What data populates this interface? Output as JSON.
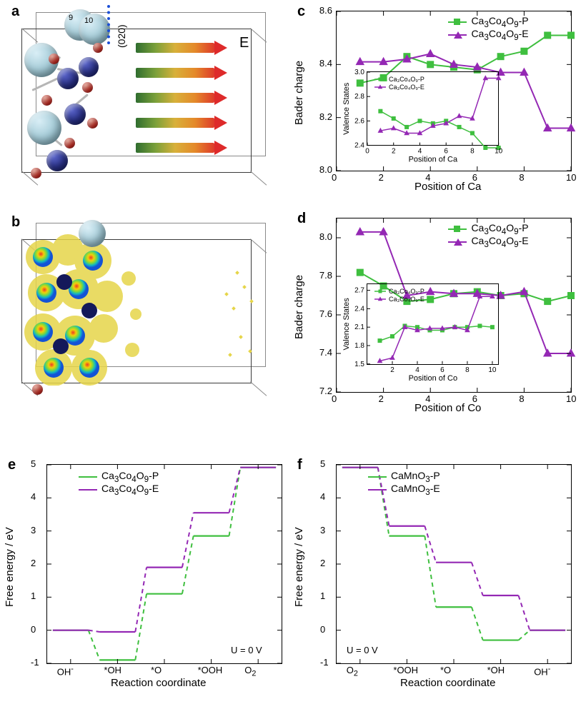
{
  "panelLabels": {
    "a": "a",
    "b": "b",
    "c": "c",
    "d": "d",
    "e": "e",
    "f": "f"
  },
  "panelA": {
    "boxLabel_E": "E",
    "planeLabel": "(020)",
    "atomNumbers": [
      "9",
      "10"
    ],
    "arrows_count": 5,
    "colors": {
      "Ca": "#a7cdd9",
      "Co": "#2b338e",
      "O": "#e0342a",
      "box": "#3a3a3a",
      "plane_dots": "#1a4ed6",
      "arrow_gradient": [
        "#2f6d2f",
        "#7aa03a",
        "#d8b03a",
        "#e48a2a",
        "#de3a2a"
      ]
    }
  },
  "panelB": {
    "colors": {
      "isosurface": "#e6d54a",
      "orbital_rings": [
        "#1453d6",
        "#10b6c3",
        "#7ad93d",
        "#f1d00a",
        "#ef3a24"
      ]
    }
  },
  "panelC": {
    "type": "line-scatter",
    "xlabel": "Position of Ca",
    "ylabel": "Bader charge",
    "xlim": [
      0,
      10
    ],
    "xticks": [
      0,
      2,
      4,
      6,
      8,
      10
    ],
    "ylim": [
      8.0,
      8.6
    ],
    "yticks": [
      8.0,
      8.2,
      8.4,
      8.6
    ],
    "label_fontsize": 15,
    "tick_fontsize": 13,
    "series": [
      {
        "name": "Ca3Co4O9-P",
        "html": "Ca<sub>3</sub>Co<sub>4</sub>O<sub>9</sub>-P",
        "color": "#3fbf3f",
        "marker": "square",
        "marker_size": 9,
        "line_width": 2,
        "x": [
          1,
          2,
          3,
          4,
          5,
          6,
          7,
          8,
          9,
          10
        ],
        "y": [
          8.33,
          8.35,
          8.43,
          8.4,
          8.39,
          8.38,
          8.43,
          8.45,
          8.51,
          8.51
        ]
      },
      {
        "name": "Ca3Co4O9-E",
        "html": "Ca<sub>3</sub>Co<sub>4</sub>O<sub>9</sub>-E",
        "color": "#9428b4",
        "marker": "triangle",
        "marker_size": 10,
        "line_width": 2,
        "x": [
          1,
          2,
          3,
          4,
          5,
          6,
          7,
          8,
          9,
          10
        ],
        "y": [
          8.41,
          8.41,
          8.42,
          8.44,
          8.4,
          8.39,
          8.37,
          8.37,
          8.16,
          8.16
        ]
      }
    ],
    "inset": {
      "xlabel": "Position of Ca",
      "ylabel": "Valence States",
      "xlim": [
        0,
        10
      ],
      "xticks": [
        0,
        2,
        4,
        6,
        8,
        10
      ],
      "ylim": [
        2.4,
        3.0
      ],
      "yticks": [
        2.4,
        2.6,
        2.8,
        3.0
      ],
      "series": [
        {
          "name": "Ca3Co4O9-P",
          "html": "Ca<sub>3</sub>Co<sub>4</sub>O<sub>9</sub>-P",
          "color": "#3fbf3f",
          "marker": "square",
          "x": [
            1,
            2,
            3,
            4,
            5,
            6,
            7,
            8,
            9,
            10
          ],
          "y": [
            2.68,
            2.62,
            2.55,
            2.6,
            2.58,
            2.6,
            2.55,
            2.5,
            2.38,
            2.38
          ]
        },
        {
          "name": "Ca3Co4O9-E",
          "html": "Ca<sub>3</sub>Co<sub>4</sub>O<sub>9</sub>-E",
          "color": "#9428b4",
          "marker": "triangle",
          "x": [
            1,
            2,
            3,
            4,
            5,
            6,
            7,
            8,
            9,
            10
          ],
          "y": [
            2.52,
            2.54,
            2.5,
            2.5,
            2.56,
            2.58,
            2.64,
            2.62,
            2.95,
            2.95
          ]
        }
      ]
    }
  },
  "panelD": {
    "type": "line-scatter",
    "xlabel": "Position of Co",
    "ylabel": "Bader charge",
    "xlim": [
      0,
      10
    ],
    "xticks": [
      0,
      2,
      4,
      6,
      8,
      10
    ],
    "ylim": [
      7.2,
      8.1
    ],
    "yticks": [
      7.2,
      7.4,
      7.6,
      7.8,
      8.0
    ],
    "series": [
      {
        "name": "Ca3Co4O9-P",
        "html": "Ca<sub>3</sub>Co<sub>4</sub>O<sub>9</sub>-P",
        "color": "#3fbf3f",
        "marker": "square",
        "x": [
          1,
          2,
          3,
          4,
          5,
          6,
          7,
          8,
          9,
          10
        ],
        "y": [
          7.82,
          7.75,
          7.67,
          7.68,
          7.71,
          7.72,
          7.7,
          7.71,
          7.67,
          7.7
        ]
      },
      {
        "name": "Ca3Co4O9-E",
        "html": "Ca<sub>3</sub>Co<sub>4</sub>O<sub>9</sub>-E",
        "color": "#9428b4",
        "marker": "triangle",
        "x": [
          1,
          2,
          3,
          4,
          5,
          6,
          7,
          8,
          9,
          10
        ],
        "y": [
          8.03,
          8.03,
          7.7,
          7.72,
          7.71,
          7.71,
          7.7,
          7.72,
          7.4,
          7.4
        ]
      }
    ],
    "inset": {
      "xlabel": "Position of Co",
      "ylabel": "Valence States",
      "xlim": [
        0,
        10.5
      ],
      "xticks": [
        2,
        4,
        6,
        8,
        10
      ],
      "ylim": [
        1.5,
        2.8
      ],
      "yticks": [
        1.5,
        1.8,
        2.1,
        2.4,
        2.7
      ],
      "series": [
        {
          "name": "Ca3Co4O9-P",
          "html": "Ca<sub>3</sub>Co<sub>4</sub>O<sub>9</sub>-P",
          "color": "#3fbf3f",
          "marker": "square",
          "x": [
            1,
            2,
            3,
            4,
            5,
            6,
            7,
            8,
            9,
            10
          ],
          "y": [
            1.88,
            1.95,
            2.12,
            2.1,
            2.05,
            2.05,
            2.1,
            2.1,
            2.12,
            2.1
          ]
        },
        {
          "name": "Ca3Co4O9-E",
          "html": "Ca<sub>3</sub>Co<sub>4</sub>O<sub>9</sub>-E",
          "color": "#9428b4",
          "marker": "triangle",
          "x": [
            1,
            2,
            3,
            4,
            5,
            6,
            7,
            8,
            9,
            10
          ],
          "y": [
            1.55,
            1.6,
            2.1,
            2.05,
            2.08,
            2.08,
            2.1,
            2.05,
            2.6,
            2.6
          ]
        }
      ]
    }
  },
  "panelE": {
    "type": "step",
    "xlabel": "Reaction coordinate",
    "ylabel": "Free energy / eV",
    "xticks_labels": [
      "OH<sup>-</sup>",
      "*OH",
      "*O",
      "*OOH",
      "O<sub>2</sub>"
    ],
    "ylim": [
      -1,
      5
    ],
    "yticks": [
      -1,
      0,
      1,
      2,
      3,
      4,
      5
    ],
    "annotation": "U = 0 V",
    "colors": {
      "P": "#3fbf3f",
      "E": "#9428b4"
    },
    "legend": [
      {
        "html": "Ca<sub>3</sub>Co<sub>4</sub>O<sub>9</sub>-P",
        "color": "#3fbf3f"
      },
      {
        "html": "Ca<sub>3</sub>Co<sub>4</sub>O<sub>9</sub>-E",
        "color": "#9428b4"
      }
    ],
    "series_P": [
      0.0,
      -0.9,
      1.1,
      2.85,
      4.92
    ],
    "series_E": [
      0.0,
      -0.05,
      1.9,
      3.55,
      4.92
    ],
    "step_style": {
      "plateau_line": "solid",
      "rise_line": "dashed",
      "line_width": 2
    }
  },
  "panelF": {
    "type": "step",
    "xlabel": "Reaction coordinate",
    "ylabel": "Free energy / eV",
    "xticks_labels": [
      "O<sub>2</sub>",
      "*OOH",
      "*O",
      "*OH",
      "OH<sup>-</sup>"
    ],
    "ylim": [
      -1,
      5
    ],
    "yticks": [
      -1,
      0,
      1,
      2,
      3,
      4,
      5
    ],
    "annotation": "U = 0 V",
    "colors": {
      "P": "#3fbf3f",
      "E": "#9428b4"
    },
    "legend": [
      {
        "html": "CaMnO<sub>3</sub>-P",
        "color": "#3fbf3f"
      },
      {
        "html": "CaMnO<sub>3</sub>-E",
        "color": "#9428b4"
      }
    ],
    "series_P": [
      4.92,
      2.85,
      0.7,
      -0.3,
      0.0
    ],
    "series_E": [
      4.92,
      3.15,
      2.05,
      1.05,
      0.0
    ],
    "step_style": {
      "plateau_line": "solid",
      "rise_line": "dashed",
      "line_width": 2
    }
  }
}
